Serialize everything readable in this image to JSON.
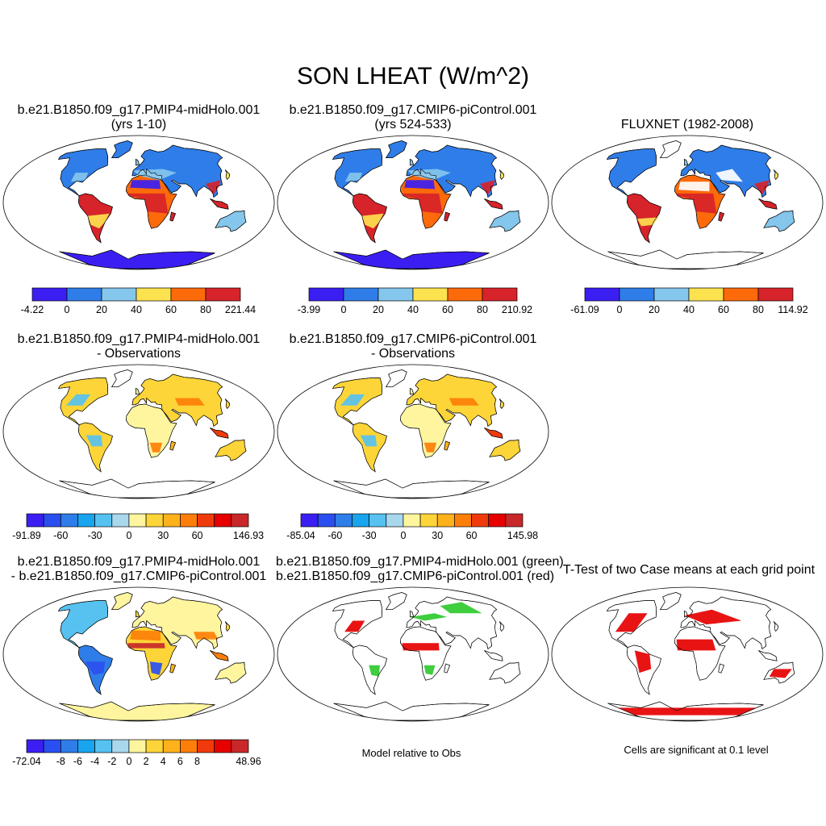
{
  "main_title": "SON LHEAT (W/m^2)",
  "panels": [
    {
      "id": "p1",
      "title_lines": [
        "b.e21.B1850.f09_g17.PMIP4-midHolo.001",
        "(yrs 1-10)"
      ],
      "scheme": "abs"
    },
    {
      "id": "p2",
      "title_lines": [
        "b.e21.B1850.f09_g17.CMIP6-piControl.001",
        "(yrs 524-533)"
      ],
      "scheme": "abs"
    },
    {
      "id": "p3",
      "title_lines": [
        "FLUXNET (1982-2008)"
      ],
      "scheme": "obs"
    },
    {
      "id": "p4",
      "title_lines": [
        "b.e21.B1850.f09_g17.PMIP4-midHolo.001",
        "- Observations"
      ],
      "scheme": "diff"
    },
    {
      "id": "p5",
      "title_lines": [
        "b.e21.B1850.f09_g17.CMIP6-piControl.001",
        "- Observations"
      ],
      "scheme": "diff"
    },
    {
      "id": "p6",
      "title_lines": [
        "b.e21.B1850.f09_g17.PMIP4-midHolo.001",
        "- b.e21.B1850.f09_g17.CMIP6-piControl.001"
      ],
      "scheme": "cdiff"
    },
    {
      "id": "p7",
      "title_lines": [
        "b.e21.B1850.f09_g17.PMIP4-midHolo.001 (green)",
        "b.e21.B1850.f09_g17.CMIP6-piControl.001 (red)"
      ],
      "scheme": "rg"
    },
    {
      "id": "p8",
      "title_lines": [
        "T-Test of two Case means at each grid point"
      ],
      "scheme": "ttest"
    }
  ],
  "colorbars": [
    {
      "id": "cb1",
      "colors": [
        "#3b1ff2",
        "#2f7de8",
        "#84c6ec",
        "#fde24f",
        "#fd6a0a",
        "#d7232a"
      ],
      "labels": [
        "-4.22",
        "0",
        "20",
        "40",
        "60",
        "80",
        "221.44"
      ]
    },
    {
      "id": "cb2",
      "colors": [
        "#3b1ff2",
        "#2f7de8",
        "#84c6ec",
        "#fde24f",
        "#fd6a0a",
        "#d7232a"
      ],
      "labels": [
        "-3.99",
        "0",
        "20",
        "40",
        "60",
        "80",
        "210.92"
      ]
    },
    {
      "id": "cb3",
      "colors": [
        "#3b1ff2",
        "#2f7de8",
        "#84c6ec",
        "#fde24f",
        "#fd6a0a",
        "#d7232a"
      ],
      "labels": [
        "-61.09",
        "0",
        "20",
        "40",
        "60",
        "80",
        "114.92"
      ]
    },
    {
      "id": "cb4",
      "colors": [
        "#3b1ff2",
        "#2a4ff0",
        "#2f7de8",
        "#19a4ee",
        "#57c1f0",
        "#a9d8ee",
        "#fff59e",
        "#fed538",
        "#fdb21c",
        "#fd7f09",
        "#f03a0c",
        "#e60000",
        "#c8282a"
      ],
      "labels": [
        "-91.89",
        "-60",
        "-30",
        "0",
        "30",
        "60",
        "146.93"
      ],
      "label_at": [
        0,
        2,
        4,
        6,
        8,
        10,
        13
      ]
    },
    {
      "id": "cb5",
      "colors": [
        "#3b1ff2",
        "#2a4ff0",
        "#2f7de8",
        "#19a4ee",
        "#57c1f0",
        "#a9d8ee",
        "#fff59e",
        "#fed538",
        "#fdb21c",
        "#fd7f09",
        "#f03a0c",
        "#e60000",
        "#c8282a"
      ],
      "labels": [
        "-85.04",
        "-60",
        "-30",
        "0",
        "30",
        "60",
        "145.98"
      ],
      "label_at": [
        0,
        2,
        4,
        6,
        8,
        10,
        13
      ]
    },
    {
      "id": "cb6",
      "colors": [
        "#3b1ff2",
        "#2a4ff0",
        "#2f7de8",
        "#19a4ee",
        "#57c1f0",
        "#a9d8ee",
        "#fff59e",
        "#fed538",
        "#fdb21c",
        "#fd7f09",
        "#f03a0c",
        "#e60000",
        "#c8282a"
      ],
      "labels": [
        "-72.04",
        "-8",
        "-6",
        "-4",
        "-2",
        "0",
        "2",
        "4",
        "6",
        "8",
        "48.96"
      ],
      "label_at": [
        0,
        2,
        3,
        4,
        5,
        6,
        7,
        8,
        9,
        10,
        13
      ]
    }
  ],
  "notes": {
    "model_relative": "Model relative to Obs",
    "significance": "Cells are significant at 0.1 level"
  }
}
